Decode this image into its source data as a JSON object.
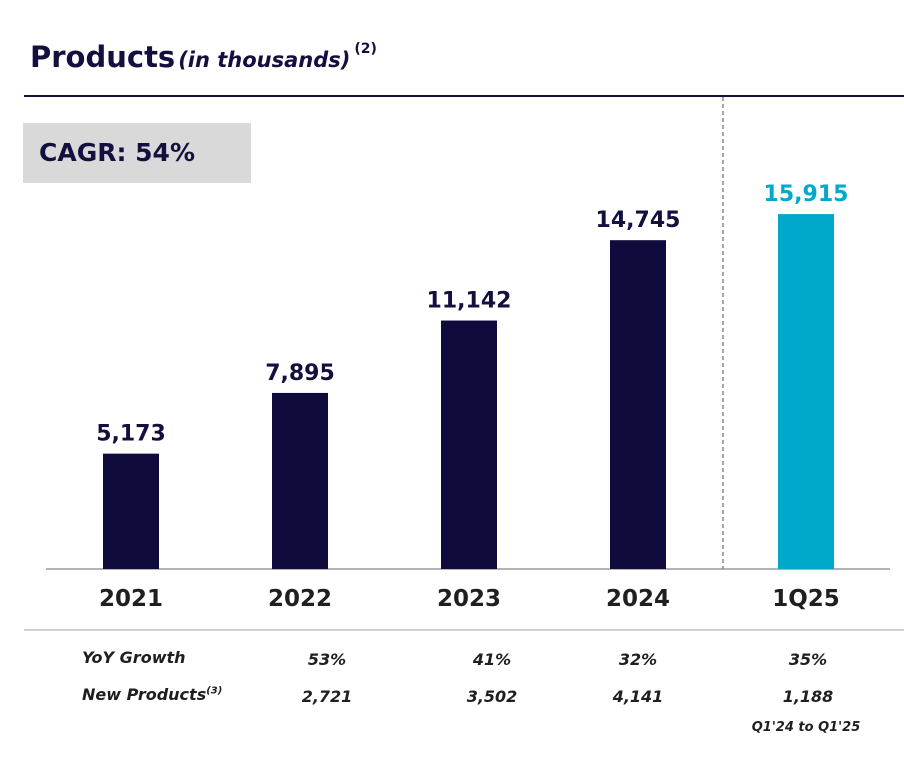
{
  "header": {
    "title": "Products",
    "subtitle": "(in thousands)",
    "footnote": "(2)"
  },
  "cagr_label": "CAGR: 54%",
  "chart_data": {
    "type": "bar",
    "title": "Products (in thousands)",
    "categories": [
      "2021",
      "2022",
      "2023",
      "2024",
      "1Q25"
    ],
    "values": [
      5173,
      7895,
      11142,
      14745,
      15915
    ],
    "value_labels": [
      "5,173",
      "7,895",
      "11,142",
      "14,745",
      "15,915"
    ],
    "bar_colors": [
      "#0f0b3d",
      "#0f0b3d",
      "#0f0b3d",
      "#0f0b3d",
      "#00a8cc"
    ],
    "label_colors": [
      "#13103f",
      "#13103f",
      "#13103f",
      "#13103f",
      "#00a8cc"
    ],
    "xlabel": "",
    "ylabel": "",
    "ylim": [
      0,
      18000
    ],
    "grid": false,
    "separator_before_category": "1Q25"
  },
  "table": {
    "rows": [
      {
        "label": "YoY Growth",
        "footnote": "",
        "values": [
          "53%",
          "41%",
          "32%",
          "35%"
        ]
      },
      {
        "label": "New Products",
        "footnote": "(3)",
        "values": [
          "2,721",
          "3,502",
          "4,141",
          "1,188"
        ]
      }
    ],
    "note": "Q1'24 to Q1'25"
  }
}
